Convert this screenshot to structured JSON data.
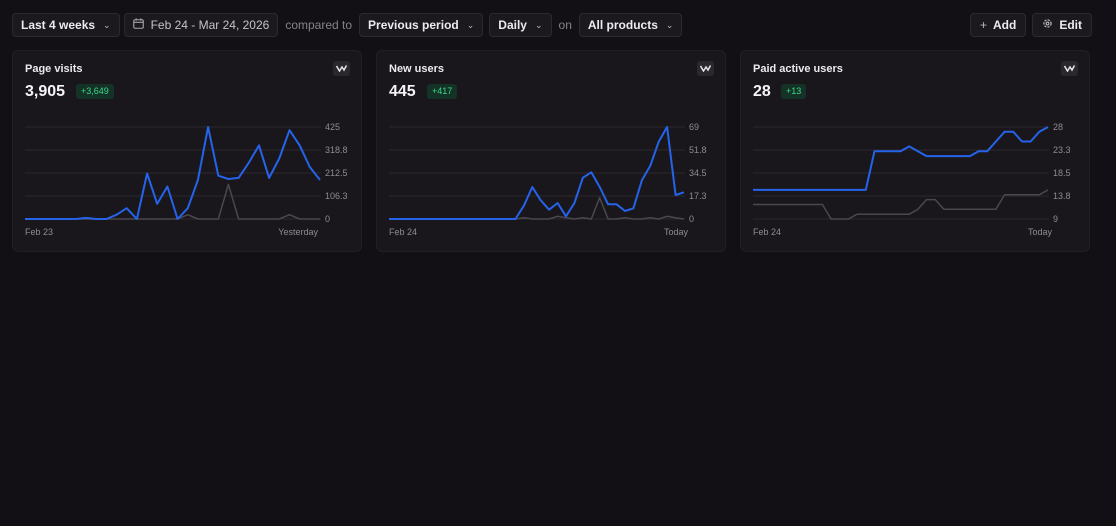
{
  "toolbar": {
    "range_label": "Last 4 weeks",
    "date_range": "Feb 24 - Mar 24, 2026",
    "compared_to_text": "compared to",
    "comparison_label": "Previous period",
    "granularity_label": "Daily",
    "on_text": "on",
    "products_label": "All products",
    "add_label": "Add",
    "edit_label": "Edit"
  },
  "colors": {
    "current": "#2563eb",
    "previous": "#4a474f",
    "badge_text": "#3dd68c",
    "background": "#121014"
  },
  "cards": [
    {
      "title": "Page visits",
      "value": "3,905",
      "delta": "+3,649",
      "x_start": "Feb 23",
      "x_end": "Yesterday",
      "chart_data": {
        "type": "line",
        "ylim": [
          0,
          425
        ],
        "y_ticks": [
          "425",
          "318.8",
          "212.5",
          "106.3",
          "0"
        ],
        "series": [
          {
            "values": [
              0,
              0,
              0,
              0,
              0,
              0,
              5,
              0,
              0,
              20,
              50,
              0,
              210,
              70,
              150,
              0,
              50,
              180,
              425,
              200,
              185,
              190,
              260,
              340,
              190,
              280,
              410,
              340,
              240,
              180
            ]
          },
          {
            "values": [
              0,
              0,
              0,
              0,
              0,
              0,
              0,
              0,
              0,
              0,
              0,
              0,
              0,
              0,
              0,
              0,
              20,
              0,
              0,
              0,
              160,
              0,
              0,
              0,
              0,
              0,
              20,
              0,
              0,
              0
            ]
          }
        ]
      }
    },
    {
      "title": "New users",
      "value": "445",
      "delta": "+417",
      "x_start": "Feb 24",
      "x_end": "Today",
      "chart_data": {
        "type": "line",
        "ylim": [
          0,
          69
        ],
        "y_ticks": [
          "69",
          "51.8",
          "34.5",
          "17.3",
          "0"
        ],
        "series": [
          {
            "values": [
              0,
              0,
              0,
              0,
              0,
              0,
              0,
              0,
              0,
              0,
              0,
              0,
              0,
              0,
              0,
              0,
              10,
              24,
              14,
              7,
              12,
              2,
              12,
              31,
              35,
              24,
              11,
              11,
              6,
              8,
              29,
              40,
              58,
              69,
              18,
              20
            ]
          },
          {
            "values": [
              0,
              0,
              0,
              0,
              0,
              0,
              0,
              0,
              0,
              0,
              0,
              0,
              0,
              0,
              0,
              0,
              1,
              0,
              0,
              0,
              2,
              1,
              0,
              1,
              0,
              16,
              0,
              0,
              1,
              0,
              0,
              1,
              0,
              2,
              1,
              0
            ]
          }
        ]
      }
    },
    {
      "title": "Paid active users",
      "value": "28",
      "delta": "+13",
      "x_start": "Feb 24",
      "x_end": "Today",
      "chart_data": {
        "type": "line",
        "ylim": [
          9,
          28
        ],
        "y_ticks": [
          "28",
          "23.3",
          "18.5",
          "13.8",
          "9"
        ],
        "series": [
          {
            "values": [
              15,
              15,
              15,
              15,
              15,
              15,
              15,
              15,
              15,
              15,
              15,
              15,
              15,
              15,
              23,
              23,
              23,
              23,
              24,
              23,
              22,
              22,
              22,
              22,
              22,
              22,
              23,
              23,
              25,
              27,
              27,
              25,
              25,
              27,
              28
            ]
          },
          {
            "values": [
              12,
              12,
              12,
              12,
              12,
              12,
              12,
              12,
              12,
              9,
              9,
              9,
              10,
              10,
              10,
              10,
              10,
              10,
              10,
              11,
              13,
              13,
              11,
              11,
              11,
              11,
              11,
              11,
              11,
              14,
              14,
              14,
              14,
              14,
              15
            ]
          }
        ]
      }
    }
  ]
}
